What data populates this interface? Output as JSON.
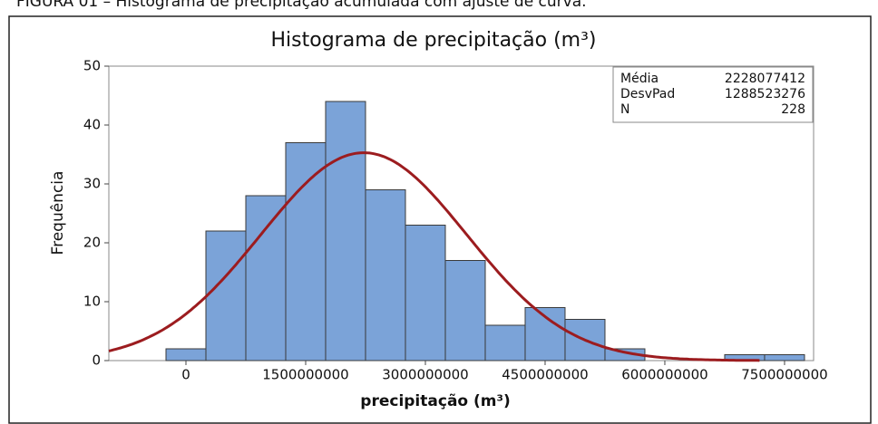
{
  "caption": "FIGURA 01 – Histograma de precipitação acumulada com ajuste de curva.",
  "chart_data": {
    "type": "histogram",
    "title": "Histograma de precipitação (m³)",
    "xlabel": "precipitação (m³)",
    "ylabel": "Frequência",
    "bins": [
      -250000000,
      250000000,
      750000000,
      1250000000,
      1750000000,
      2250000000,
      2750000000,
      3250000000,
      3750000000,
      4250000000,
      4750000000,
      5250000000,
      5750000000,
      6250000000,
      6750000000,
      7250000000,
      7750000000
    ],
    "counts": [
      2,
      22,
      28,
      37,
      44,
      29,
      23,
      17,
      6,
      9,
      7,
      2,
      0,
      0,
      1,
      1
    ],
    "color": "#7ba3d8",
    "curve_color": "#9c1c1f",
    "xlim": [
      -966000000,
      7864000000
    ],
    "xticks": [
      0,
      1500000000,
      3000000000,
      4500000000,
      6000000000,
      7500000000
    ],
    "ylim": [
      0,
      50
    ],
    "yticks": [
      0,
      10,
      20,
      30,
      40,
      50
    ],
    "stats": [
      {
        "label": "Média",
        "value": 2228077412
      },
      {
        "label": "DesvPad",
        "value": 1288523276
      },
      {
        "label": "N",
        "value": 228
      }
    ]
  }
}
